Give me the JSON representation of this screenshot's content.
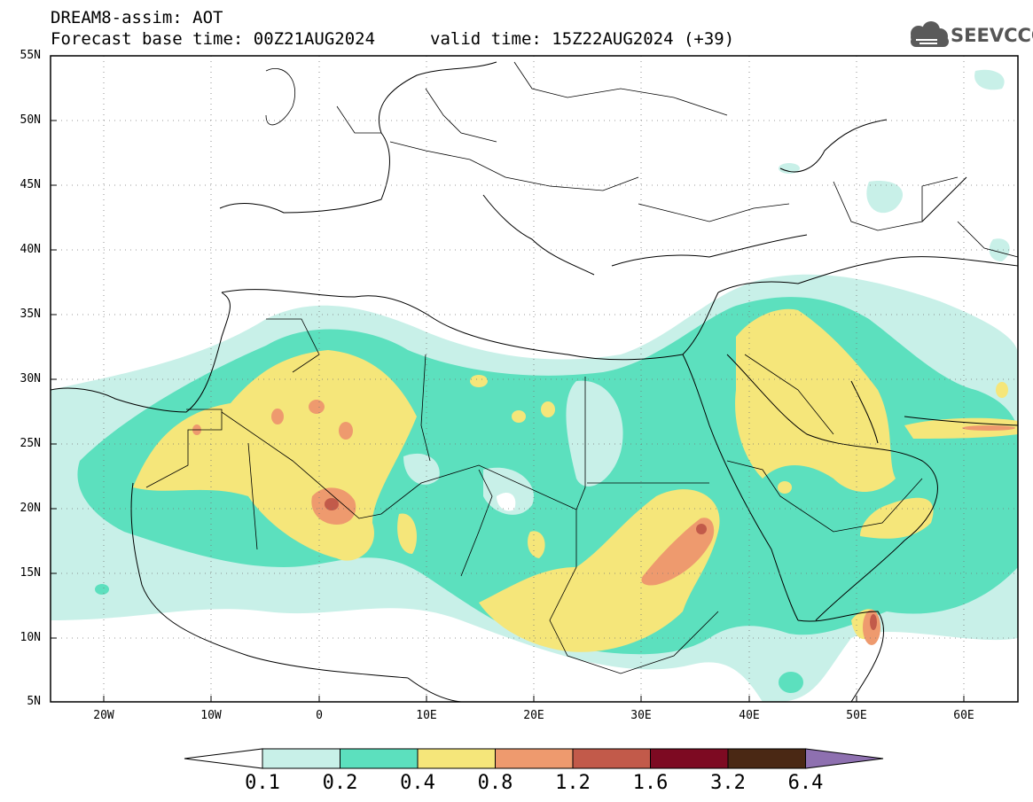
{
  "title": {
    "line1": "DREAM8-assim: AOT",
    "base_time": "Forecast base time: 00Z21AUG2024",
    "valid_time": "valid time: 15Z22AUG2024 (+39)"
  },
  "logo": {
    "text": "SEEVCCC",
    "icon": "cloud-icon"
  },
  "map": {
    "lon_range": [
      -25,
      65
    ],
    "lat_range": [
      5,
      55
    ],
    "lat_labels": [
      "55N",
      "50N",
      "45N",
      "40N",
      "35N",
      "30N",
      "25N",
      "20N",
      "15N",
      "10N",
      "5N"
    ],
    "lon_labels": [
      "20W",
      "10W",
      "0",
      "10E",
      "20E",
      "30E",
      "40E",
      "50E",
      "60E"
    ],
    "gridlines": "dotted"
  },
  "colorbar": {
    "colors": [
      "#ffffff",
      "#c8f0e8",
      "#5ce0be",
      "#f5e67a",
      "#ee9a6e",
      "#c25a4a",
      "#7d0a22",
      "#4a2814",
      "#8e70b0"
    ],
    "labels": [
      "0.1",
      "0.2",
      "0.4",
      "0.8",
      "1.2",
      "1.6",
      "3.2",
      "6.4"
    ]
  }
}
